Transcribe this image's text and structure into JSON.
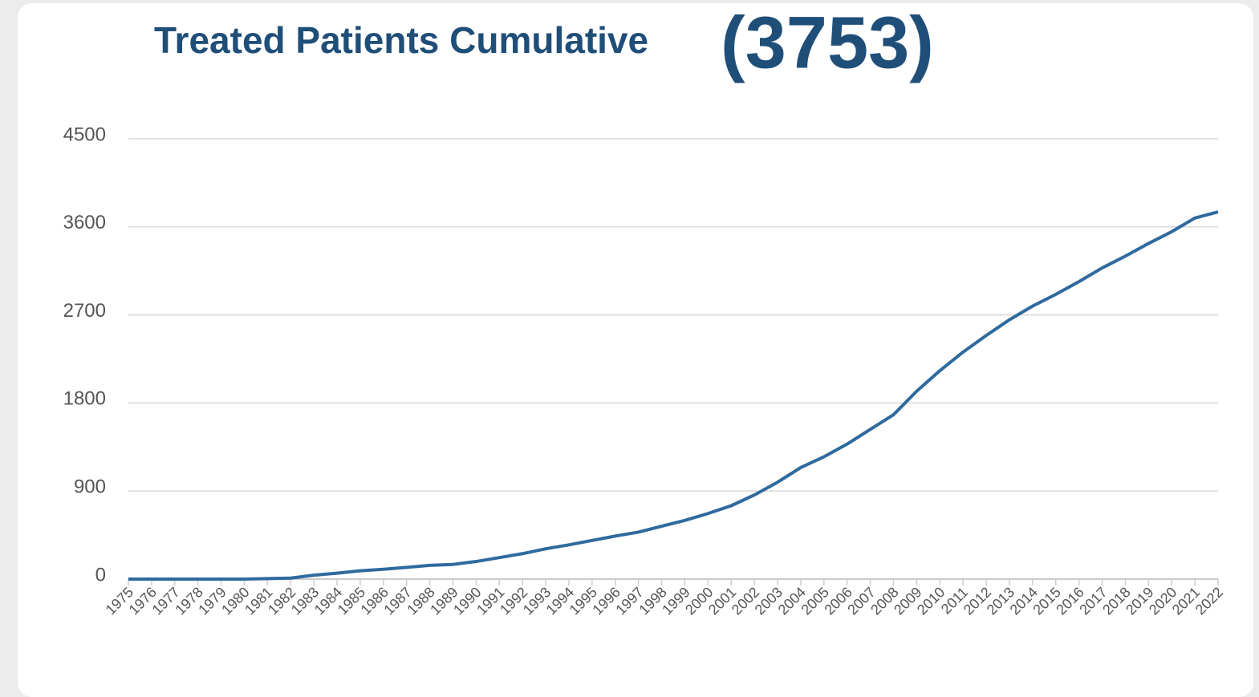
{
  "chart_data": {
    "type": "line",
    "title": "Treated Patients Cumulative",
    "total_label": "(3753)",
    "categories": [
      "1975",
      "1976",
      "1977",
      "1978",
      "1979",
      "1980",
      "1981",
      "1982",
      "1983",
      "1984",
      "1985",
      "1986",
      "1987",
      "1988",
      "1989",
      "1990",
      "1991",
      "1992",
      "1993",
      "1994",
      "1995",
      "1996",
      "1997",
      "1998",
      "1999",
      "2000",
      "2001",
      "2002",
      "2003",
      "2004",
      "2005",
      "2006",
      "2007",
      "2008",
      "2009",
      "2010",
      "2011",
      "2012",
      "2013",
      "2014",
      "2015",
      "2016",
      "2017",
      "2018",
      "2019",
      "2020",
      "2021",
      "2022"
    ],
    "series": [
      {
        "name": "Treated Patients Cumulative",
        "color": "#2e6a9e",
        "values": [
          0,
          0,
          0,
          0,
          0,
          0,
          5,
          10,
          40,
          60,
          85,
          100,
          120,
          140,
          150,
          180,
          220,
          260,
          310,
          350,
          395,
          440,
          480,
          540,
          600,
          670,
          750,
          860,
          990,
          1140,
          1250,
          1380,
          1530,
          1680,
          1920,
          2130,
          2320,
          2490,
          2650,
          2790,
          2910,
          3040,
          3180,
          3300,
          3430,
          3550,
          3690,
          3753
        ]
      }
    ],
    "ylim": [
      0,
      4500
    ],
    "yticks": [
      0,
      900,
      1800,
      2700,
      3600,
      4500
    ],
    "grid": true
  }
}
